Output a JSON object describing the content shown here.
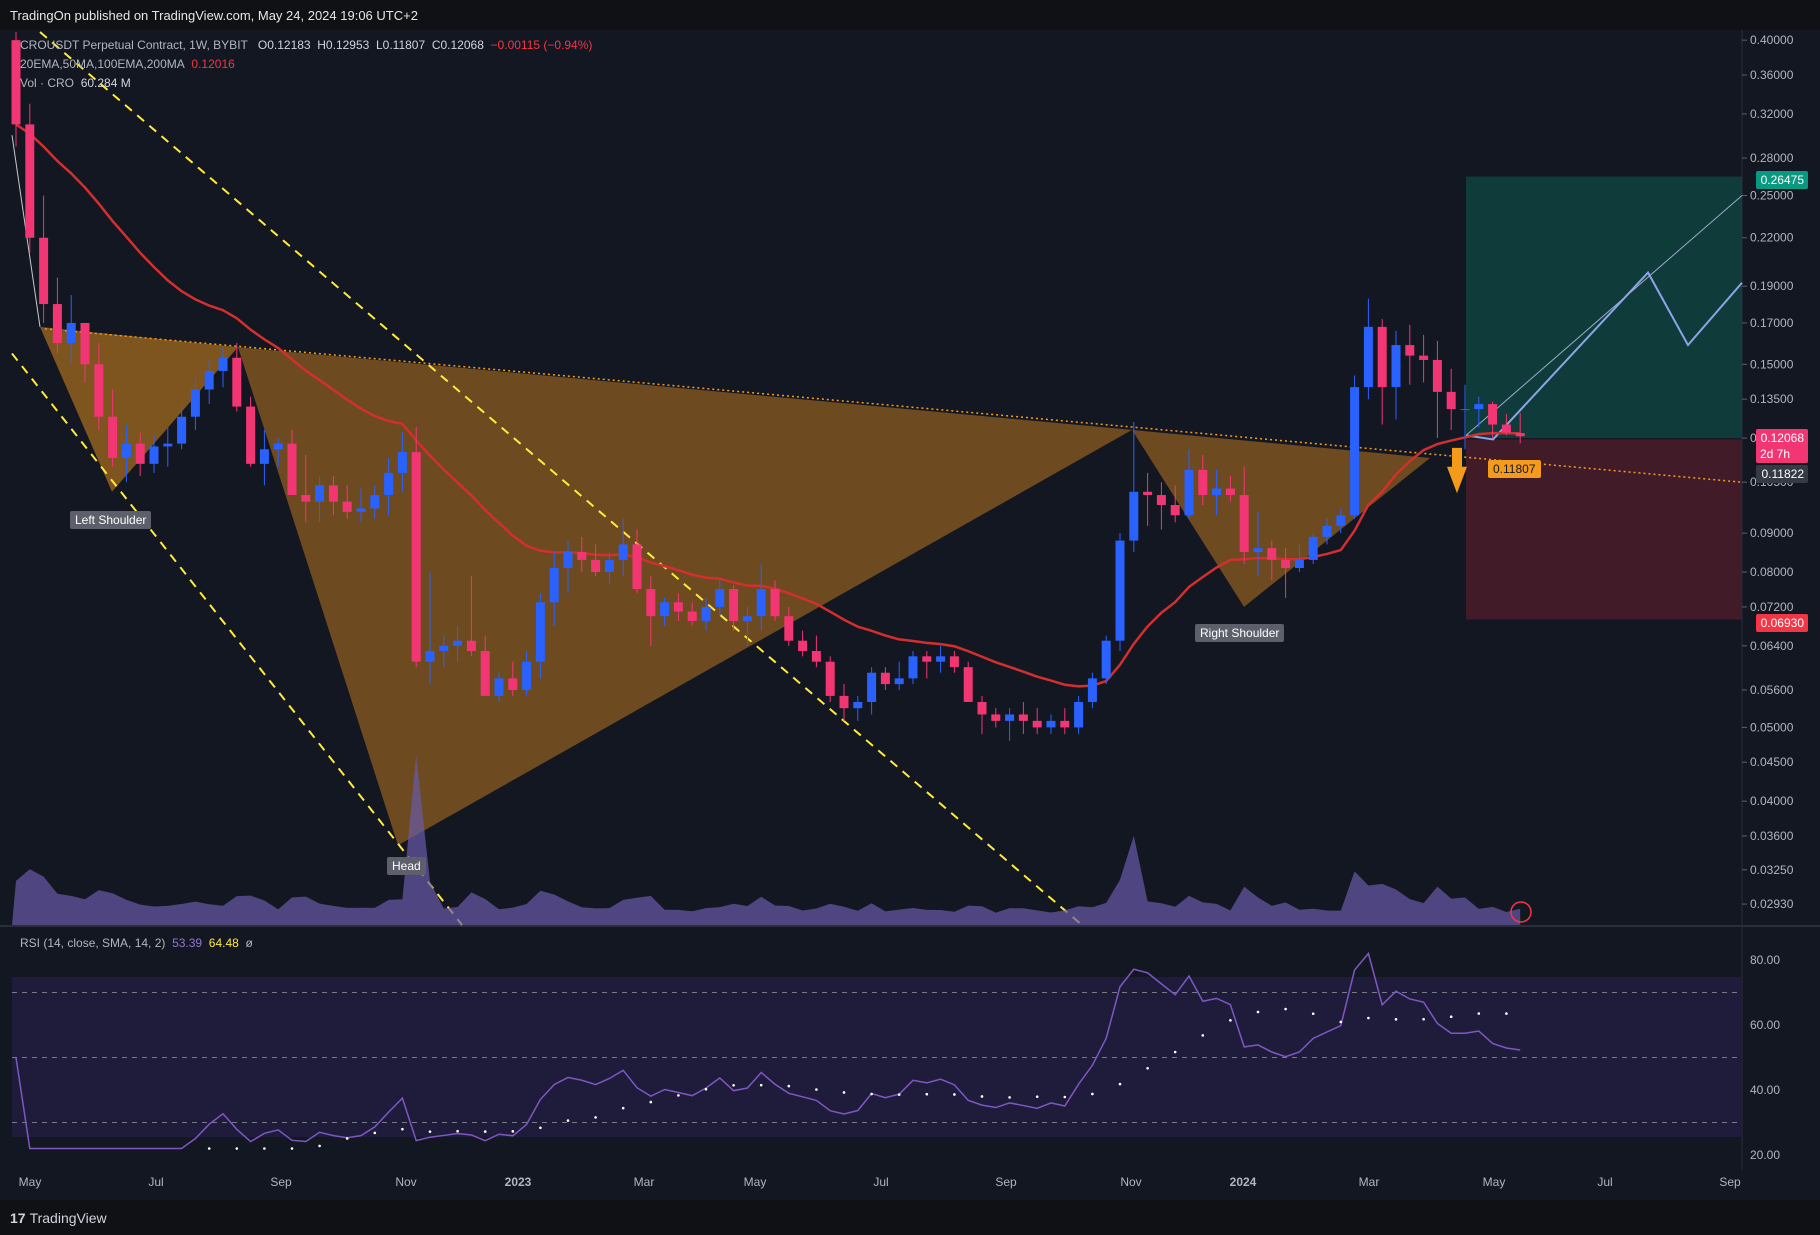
{
  "header": {
    "published": "TradingOn published on TradingView.com, May 24, 2024 19:06 UTC+2"
  },
  "footer": {
    "brand": "TradingView",
    "brand_glyph": "17"
  },
  "legend": {
    "symbol": "CROUSDT Perpetual Contract, 1W, BYBIT",
    "o": "O0.12183",
    "h": "H0.12953",
    "l": "L0.11807",
    "c": "C0.12068",
    "change": "−0.00115 (−0.94%)",
    "ma_label": "20EMA,50MA,100EMA,200MA",
    "ma_value": "0.12016",
    "vol_label": "Vol · CRO",
    "vol_value": "60.284 M",
    "rsi_label": "RSI (14, close, SMA, 14, 2)",
    "rsi_value": "53.39",
    "rsi_ma_value": "64.48",
    "rsi_extra": "ø"
  },
  "labels": {
    "left_shoulder": "Left Shoulder",
    "head": "Head",
    "right_shoulder": "Right Shoulder",
    "low_label": "0.11807"
  },
  "price_tags": {
    "target": "0.26475",
    "last": "0.12068",
    "countdown": "2d 7h",
    "ma": "0.11822",
    "stop": "0.06930"
  },
  "colors": {
    "bg": "#131722",
    "up": "#2962ff",
    "down": "#f23674",
    "ema": "#d32f2f",
    "pattern": "#b8741f",
    "target_zone": "#0f4a44",
    "stop_zone": "#4a1c28",
    "trend": "#ffeb3b",
    "rsi": "#7e57c2"
  },
  "chart_data": {
    "type": "candlestick",
    "title": "CROUSDT Perpetual Contract, 1W, BYBIT",
    "y_scale": "log",
    "ylim": [
      0.0275,
      0.41
    ],
    "y_ticks": [
      "0.40000",
      "0.36000",
      "0.32000",
      "0.28000",
      "0.25000",
      "0.22000",
      "0.19000",
      "0.17000",
      "0.15000",
      "0.13500",
      "0.12000",
      "0.10500",
      "0.09000",
      "0.08000",
      "0.07200",
      "0.06400",
      "0.05600",
      "0.05000",
      "0.04500",
      "0.04000",
      "0.03600",
      "0.03250",
      "0.02930"
    ],
    "x_ticks": [
      "May",
      "Jul",
      "Sep",
      "Nov",
      "2023",
      "Mar",
      "May",
      "Jul",
      "Sep",
      "Nov",
      "2024",
      "Mar",
      "May",
      "Jul",
      "Sep"
    ],
    "ohlc": [
      [
        0.4,
        0.41,
        0.29,
        0.31
      ],
      [
        0.31,
        0.33,
        0.21,
        0.22
      ],
      [
        0.22,
        0.25,
        0.17,
        0.18
      ],
      [
        0.18,
        0.195,
        0.155,
        0.16
      ],
      [
        0.16,
        0.185,
        0.15,
        0.17
      ],
      [
        0.17,
        0.17,
        0.142,
        0.15
      ],
      [
        0.15,
        0.16,
        0.123,
        0.128
      ],
      [
        0.128,
        0.139,
        0.11,
        0.113
      ],
      [
        0.113,
        0.125,
        0.105,
        0.118
      ],
      [
        0.118,
        0.122,
        0.107,
        0.111
      ],
      [
        0.111,
        0.121,
        0.108,
        0.117
      ],
      [
        0.117,
        0.124,
        0.11,
        0.118
      ],
      [
        0.118,
        0.133,
        0.116,
        0.128
      ],
      [
        0.128,
        0.144,
        0.123,
        0.139
      ],
      [
        0.139,
        0.152,
        0.133,
        0.147
      ],
      [
        0.147,
        0.158,
        0.14,
        0.153
      ],
      [
        0.153,
        0.16,
        0.13,
        0.132
      ],
      [
        0.132,
        0.136,
        0.11,
        0.111
      ],
      [
        0.111,
        0.123,
        0.104,
        0.116
      ],
      [
        0.116,
        0.12,
        0.11,
        0.118
      ],
      [
        0.118,
        0.123,
        0.101,
        0.101
      ],
      [
        0.101,
        0.114,
        0.093,
        0.099
      ],
      [
        0.099,
        0.107,
        0.093,
        0.104
      ],
      [
        0.104,
        0.107,
        0.095,
        0.099
      ],
      [
        0.099,
        0.104,
        0.094,
        0.096
      ],
      [
        0.096,
        0.103,
        0.093,
        0.097
      ],
      [
        0.097,
        0.104,
        0.094,
        0.101
      ],
      [
        0.101,
        0.113,
        0.095,
        0.108
      ],
      [
        0.108,
        0.122,
        0.102,
        0.115
      ],
      [
        0.115,
        0.124,
        0.06,
        0.061
      ],
      [
        0.061,
        0.08,
        0.057,
        0.063
      ],
      [
        0.063,
        0.066,
        0.06,
        0.064
      ],
      [
        0.064,
        0.068,
        0.061,
        0.065
      ],
      [
        0.065,
        0.079,
        0.062,
        0.063
      ],
      [
        0.063,
        0.066,
        0.055,
        0.055
      ],
      [
        0.055,
        0.059,
        0.054,
        0.058
      ],
      [
        0.058,
        0.061,
        0.055,
        0.056
      ],
      [
        0.056,
        0.063,
        0.055,
        0.061
      ],
      [
        0.061,
        0.075,
        0.058,
        0.073
      ],
      [
        0.073,
        0.085,
        0.068,
        0.081
      ],
      [
        0.081,
        0.088,
        0.075,
        0.085
      ],
      [
        0.085,
        0.089,
        0.08,
        0.083
      ],
      [
        0.083,
        0.087,
        0.079,
        0.08
      ],
      [
        0.08,
        0.085,
        0.077,
        0.083
      ],
      [
        0.083,
        0.094,
        0.079,
        0.087
      ],
      [
        0.087,
        0.091,
        0.075,
        0.076
      ],
      [
        0.076,
        0.079,
        0.064,
        0.07
      ],
      [
        0.07,
        0.074,
        0.068,
        0.073
      ],
      [
        0.073,
        0.075,
        0.069,
        0.071
      ],
      [
        0.071,
        0.073,
        0.068,
        0.069
      ],
      [
        0.069,
        0.074,
        0.067,
        0.072
      ],
      [
        0.072,
        0.078,
        0.07,
        0.076
      ],
      [
        0.076,
        0.077,
        0.067,
        0.069
      ],
      [
        0.069,
        0.072,
        0.064,
        0.07
      ],
      [
        0.07,
        0.082,
        0.067,
        0.076
      ],
      [
        0.076,
        0.078,
        0.069,
        0.07
      ],
      [
        0.07,
        0.072,
        0.064,
        0.065
      ],
      [
        0.065,
        0.067,
        0.062,
        0.063
      ],
      [
        0.063,
        0.066,
        0.06,
        0.061
      ],
      [
        0.061,
        0.062,
        0.054,
        0.055
      ],
      [
        0.055,
        0.057,
        0.051,
        0.053
      ],
      [
        0.053,
        0.055,
        0.051,
        0.054
      ],
      [
        0.054,
        0.06,
        0.052,
        0.059
      ],
      [
        0.059,
        0.06,
        0.056,
        0.057
      ],
      [
        0.057,
        0.061,
        0.056,
        0.058
      ],
      [
        0.058,
        0.063,
        0.057,
        0.062
      ],
      [
        0.062,
        0.063,
        0.058,
        0.061
      ],
      [
        0.061,
        0.064,
        0.059,
        0.062
      ],
      [
        0.062,
        0.063,
        0.059,
        0.06
      ],
      [
        0.06,
        0.061,
        0.054,
        0.054
      ],
      [
        0.054,
        0.055,
        0.049,
        0.052
      ],
      [
        0.052,
        0.053,
        0.05,
        0.051
      ],
      [
        0.051,
        0.053,
        0.048,
        0.052
      ],
      [
        0.052,
        0.054,
        0.049,
        0.051
      ],
      [
        0.051,
        0.053,
        0.049,
        0.05
      ],
      [
        0.05,
        0.052,
        0.049,
        0.051
      ],
      [
        0.051,
        0.053,
        0.049,
        0.05
      ],
      [
        0.05,
        0.055,
        0.049,
        0.054
      ],
      [
        0.054,
        0.059,
        0.053,
        0.058
      ],
      [
        0.058,
        0.066,
        0.057,
        0.065
      ],
      [
        0.065,
        0.09,
        0.063,
        0.088
      ],
      [
        0.088,
        0.126,
        0.085,
        0.102
      ],
      [
        0.102,
        0.108,
        0.092,
        0.101
      ],
      [
        0.101,
        0.105,
        0.091,
        0.098
      ],
      [
        0.098,
        0.104,
        0.093,
        0.095
      ],
      [
        0.095,
        0.116,
        0.094,
        0.109
      ],
      [
        0.109,
        0.114,
        0.098,
        0.101
      ],
      [
        0.101,
        0.109,
        0.095,
        0.103
      ],
      [
        0.103,
        0.107,
        0.099,
        0.101
      ],
      [
        0.101,
        0.11,
        0.082,
        0.085
      ],
      [
        0.085,
        0.096,
        0.079,
        0.086
      ],
      [
        0.086,
        0.088,
        0.078,
        0.083
      ],
      [
        0.083,
        0.086,
        0.074,
        0.081
      ],
      [
        0.081,
        0.087,
        0.08,
        0.083
      ],
      [
        0.083,
        0.09,
        0.082,
        0.089
      ],
      [
        0.089,
        0.094,
        0.087,
        0.092
      ],
      [
        0.092,
        0.097,
        0.09,
        0.095
      ],
      [
        0.095,
        0.145,
        0.094,
        0.14
      ],
      [
        0.14,
        0.183,
        0.135,
        0.168
      ],
      [
        0.168,
        0.172,
        0.125,
        0.14
      ],
      [
        0.14,
        0.166,
        0.127,
        0.159
      ],
      [
        0.159,
        0.169,
        0.141,
        0.154
      ],
      [
        0.154,
        0.164,
        0.142,
        0.152
      ],
      [
        0.152,
        0.161,
        0.12,
        0.138
      ],
      [
        0.138,
        0.148,
        0.123,
        0.131
      ],
      [
        0.131,
        0.141,
        0.116,
        0.131
      ],
      [
        0.131,
        0.136,
        0.124,
        0.133
      ],
      [
        0.133,
        0.134,
        0.12,
        0.125
      ],
      [
        0.125,
        0.129,
        0.121,
        0.122
      ],
      [
        0.12183,
        0.12953,
        0.11807,
        0.12068
      ]
    ]
  }
}
